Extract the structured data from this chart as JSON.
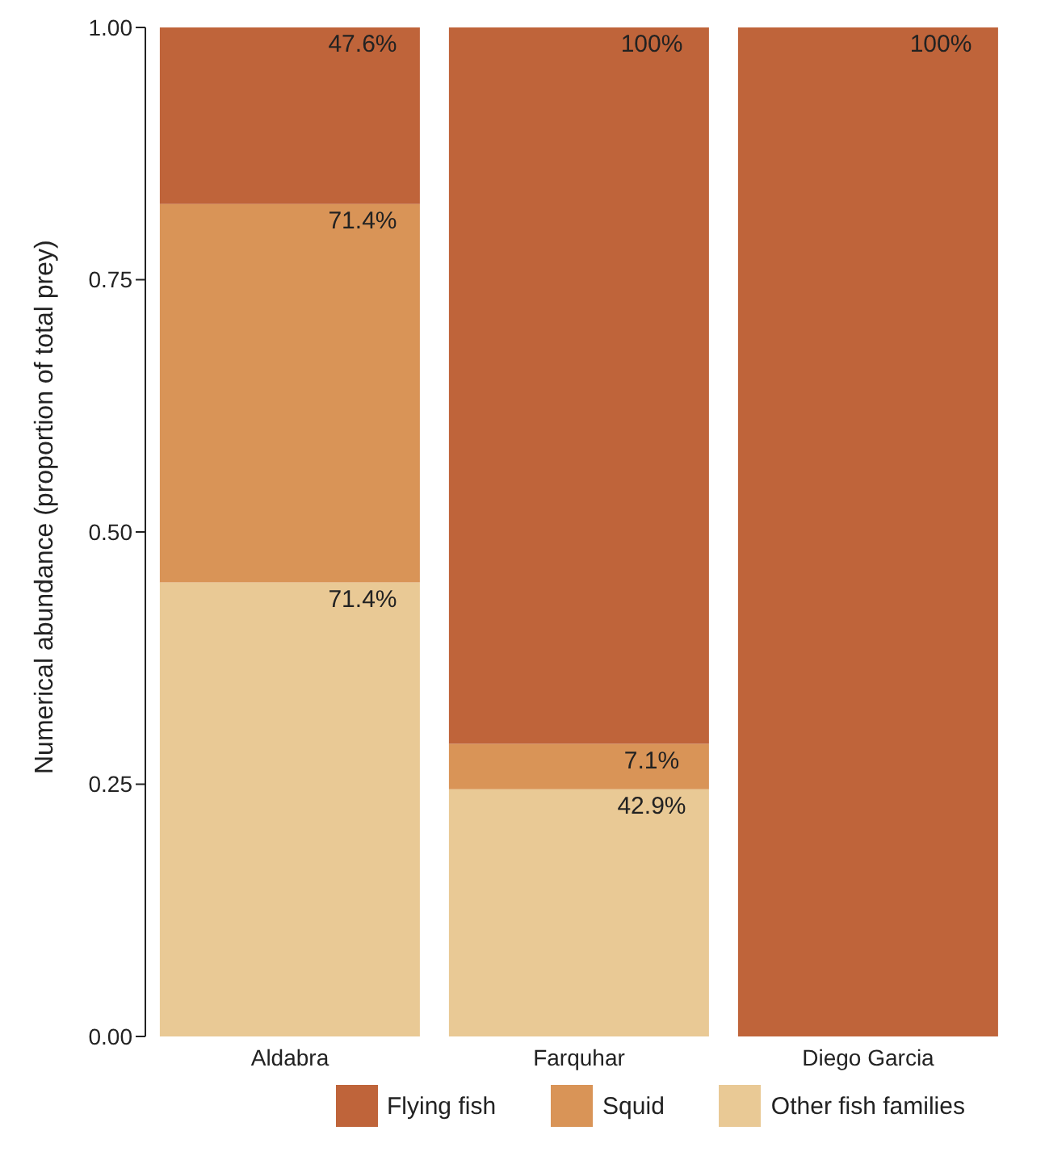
{
  "chart_data": {
    "type": "bar",
    "stacked": true,
    "ylabel": "Numerical abundance (proportion of total prey)",
    "categories": [
      "Aldabra",
      "Farquhar",
      "Diego Garcia"
    ],
    "series": [
      {
        "name": "Other fish families",
        "color": "#e9c995",
        "values": [
          0.45,
          0.245,
          0
        ]
      },
      {
        "name": "Squid",
        "color": "#d99457",
        "values": [
          0.375,
          0.045,
          0
        ]
      },
      {
        "name": "Flying fish",
        "color": "#bf643a",
        "values": [
          0.175,
          0.71,
          1
        ]
      }
    ],
    "ylim": [
      0,
      1
    ],
    "yticks": [
      {
        "value": 0,
        "label": "0.00"
      },
      0.25,
      {
        "value": 0.5,
        "label": "0.50"
      },
      0.75,
      {
        "value": 1,
        "label": "1.00"
      }
    ],
    "annotations": [
      {
        "text": "71.4%",
        "x": "Aldabra",
        "y": 0.45
      },
      {
        "text": "71.4%",
        "x": "Aldabra",
        "y": 0.825
      },
      {
        "text": "47.6%",
        "x": "Aldabra",
        "y": 1
      },
      {
        "text": "42.9%",
        "x": "Farquhar",
        "y": 0.245
      },
      {
        "text": "7.1%",
        "x": "Farquhar",
        "y": 0.29
      },
      {
        "text": "100%",
        "x": "Farquhar",
        "y": 1
      },
      {
        "text": "100%",
        "x": "Diego Garcia",
        "y": 1
      }
    ],
    "grid": false,
    "legend": "bottom"
  }
}
